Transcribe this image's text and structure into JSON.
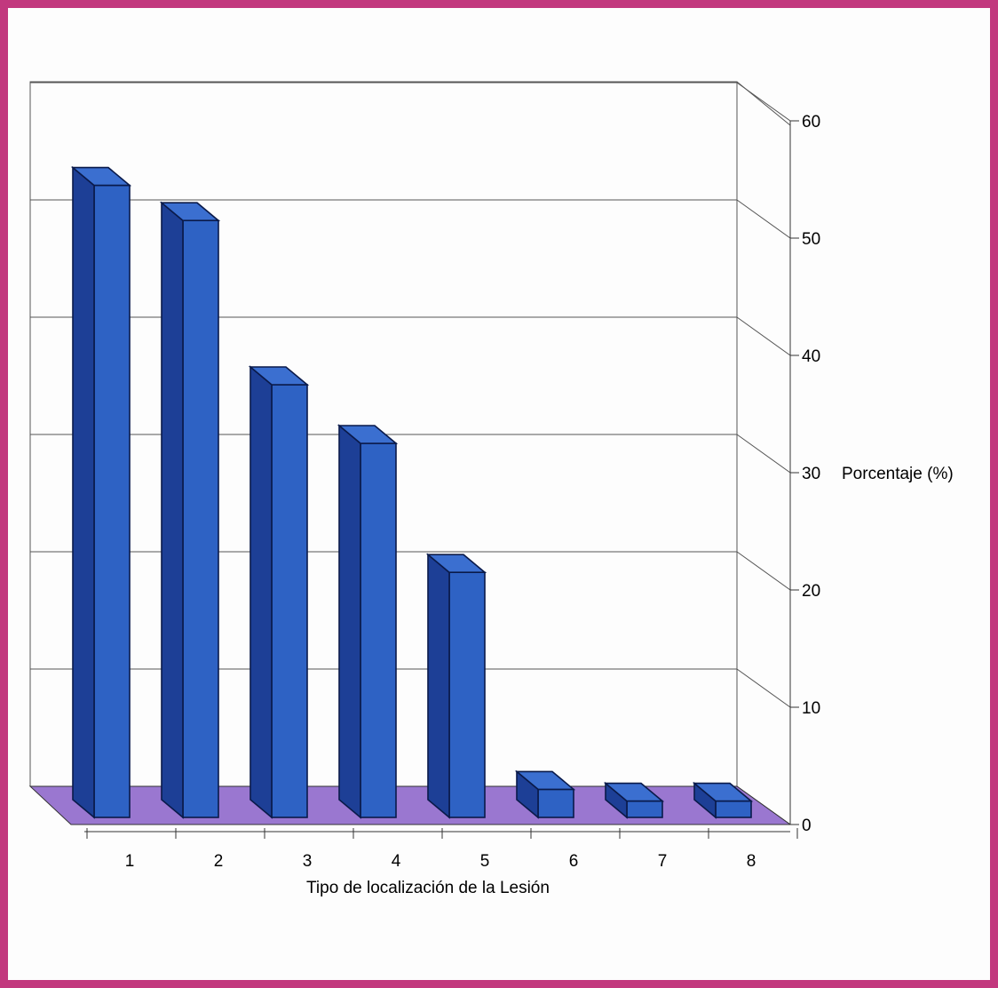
{
  "chart_data": {
    "type": "bar",
    "categories": [
      "1",
      "2",
      "3",
      "4",
      "5",
      "6",
      "7",
      "8"
    ],
    "values": [
      54.5,
      51.5,
      37.5,
      32.5,
      21.5,
      3.0,
      2.0,
      2.0
    ],
    "title": "",
    "xlabel": "Tipo de localización de la Lesión",
    "ylabel": "Porcentaje (%)",
    "ylim": [
      0,
      60
    ],
    "yticks": [
      "0",
      "10",
      "20",
      "30",
      "40",
      "50",
      "60"
    ],
    "ytick_values": [
      0,
      10,
      20,
      30,
      40,
      50,
      60
    ],
    "y_axis_side": "right",
    "label_anchor_tick": 30,
    "grid": true,
    "style_3d": true,
    "colors": {
      "frame": "#c2387e",
      "bar_front": "#2e62c4",
      "bar_side": "#1d3f96",
      "bar_top": "#3b6fd0",
      "floor": "#9a77d0",
      "grid": "#555555"
    }
  }
}
